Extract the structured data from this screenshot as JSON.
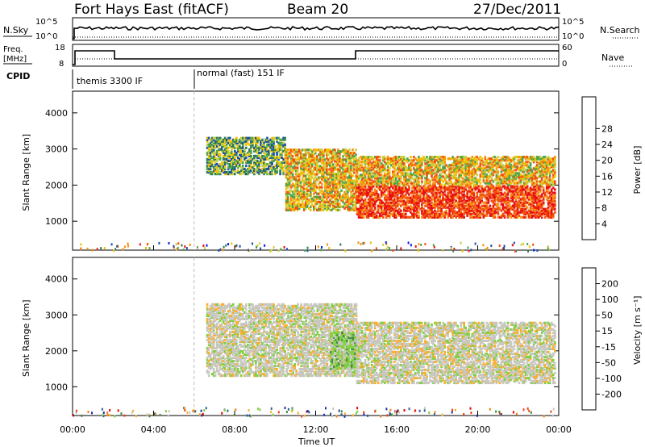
{
  "header": {
    "station": "Fort Hays East (fitACF)",
    "beam": "Beam 20",
    "date": "27/Dec/2011"
  },
  "panels": {
    "noise": {
      "left_label": "N.Sky",
      "left_ticks": [
        "10^5",
        "10^0"
      ],
      "right_ticks": [
        "10^5",
        "10^0"
      ],
      "right_label": "N.Search"
    },
    "freq": {
      "left_label_1": "Freq.",
      "left_label_2": "[MHz]",
      "left_ticks": [
        "18",
        "8"
      ],
      "right_ticks": [
        "60",
        "0"
      ],
      "right_label": "Nave"
    },
    "cpid": {
      "label": "CPID",
      "mode_1": "themis 3300 IF",
      "mode_2": "normal (fast) 151 IF"
    }
  },
  "chart_data": [
    {
      "type": "heatmap",
      "quantity": "power",
      "ylabel": "Slant Range [km]",
      "xlabel": "Time UT",
      "x_range_hours": [
        0,
        24
      ],
      "ylim": [
        200,
        4600
      ],
      "yticks": [
        1000,
        2000,
        3000,
        4000
      ],
      "xticks": [
        "00:00",
        "04:00",
        "08:00",
        "12:00",
        "16:00",
        "20:00",
        "00:00"
      ],
      "colorbar": {
        "label": "Power [dB]",
        "ticks": [
          "4",
          "8",
          "12",
          "16",
          "20",
          "24",
          "28"
        ],
        "colors": [
          "#0a1fe0",
          "#1e4fa8",
          "#2f7a5a",
          "#4fa64a",
          "#c8d040",
          "#f2c000",
          "#f89010",
          "#f05010",
          "#e81010"
        ]
      },
      "echo_regions": [
        {
          "hours": [
            6.6,
            10.5
          ],
          "range_km": [
            2300,
            3300
          ],
          "level": "low"
        },
        {
          "hours": [
            10.5,
            14.0
          ],
          "range_km": [
            1300,
            3000
          ],
          "level": "medium"
        },
        {
          "hours": [
            14.0,
            23.8
          ],
          "range_km": [
            1100,
            2000
          ],
          "level": "high"
        },
        {
          "hours": [
            14.0,
            23.8
          ],
          "range_km": [
            2000,
            2800
          ],
          "level": "medium"
        }
      ]
    },
    {
      "type": "heatmap",
      "quantity": "velocity",
      "ylabel": "Slant Range [km]",
      "xlabel": "Time UT",
      "x_range_hours": [
        0,
        24
      ],
      "ylim": [
        200,
        4600
      ],
      "yticks": [
        1000,
        2000,
        3000,
        4000
      ],
      "xticks": [
        "00:00",
        "04:00",
        "08:00",
        "12:00",
        "16:00",
        "20:00",
        "00:00"
      ],
      "colorbar": {
        "label": "Velocity [m s⁻¹]",
        "ticks": [
          "200",
          "100",
          "50",
          "15",
          "-15",
          "-50",
          "-100",
          "-200"
        ],
        "colors": [
          "#1a2fb0",
          "#2f5e8a",
          "#3f8a3f",
          "#80d040",
          "#c8c8c0",
          "#f8b030",
          "#f08010",
          "#f04010",
          "#e00000"
        ]
      },
      "echo_regions": [
        {
          "hours": [
            6.6,
            14.0
          ],
          "range_km": [
            1300,
            3300
          ],
          "level": "near-zero"
        },
        {
          "hours": [
            12.7,
            14.0
          ],
          "range_km": [
            1500,
            2500
          ],
          "level": "positive"
        },
        {
          "hours": [
            14.0,
            23.8
          ],
          "range_km": [
            1100,
            2800
          ],
          "level": "near-zero"
        }
      ]
    }
  ]
}
